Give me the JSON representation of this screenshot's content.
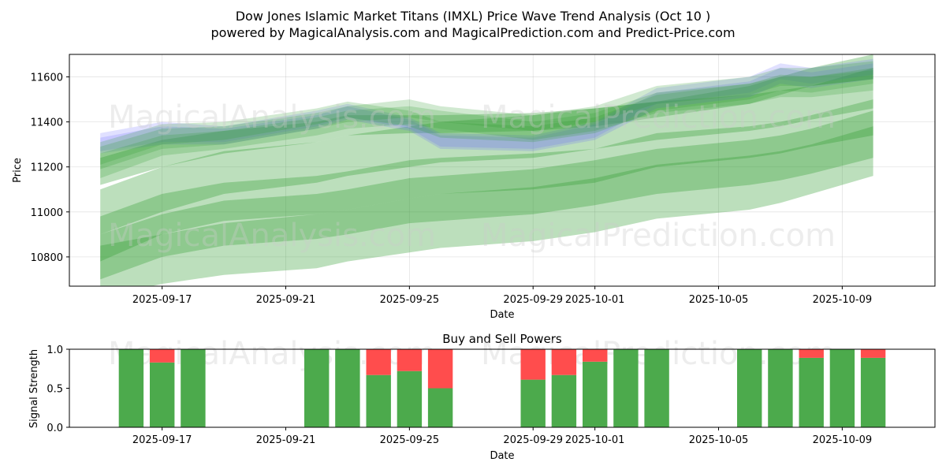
{
  "title_line1": "Dow Jones Islamic Market Titans (IMXL) Price Wave Trend Analysis (Oct 10 )",
  "title_line2": "powered by MagicalAnalysis.com and MagicalPrediction.com and Predict-Price.com",
  "watermarks": [
    "MagicalAnalysis.com",
    "MagicalPrediction.com"
  ],
  "colors": {
    "green_band": "#2e9a2e",
    "blue_band": "#6666ff",
    "buy": "#4caa4c",
    "sell": "#ff4d4d"
  },
  "chart_data": [
    {
      "type": "area",
      "title": "",
      "xlabel": "Date",
      "ylabel": "Price",
      "xlim": [
        "2025-09-14",
        "2025-10-12"
      ],
      "ylim": [
        10670,
        11700
      ],
      "xticks": [
        "2025-09-17",
        "2025-09-21",
        "2025-09-25",
        "2025-09-29",
        "2025-10-01",
        "2025-10-05",
        "2025-10-09"
      ],
      "yticks": [
        10800,
        11000,
        11200,
        11400,
        11600
      ],
      "grid": true,
      "x": [
        "2025-09-15",
        "2025-09-17",
        "2025-09-19",
        "2025-09-22",
        "2025-09-23",
        "2025-09-25",
        "2025-09-26",
        "2025-09-29",
        "2025-10-01",
        "2025-10-03",
        "2025-10-06",
        "2025-10-07",
        "2025-10-08",
        "2025-10-10"
      ],
      "recent_bands": [
        {
          "color": "blue",
          "upper": [
            11350,
            11400,
            11380,
            11450,
            11480,
            11420,
            11350,
            11340,
            11400,
            11550,
            11600,
            11660,
            11640,
            11680
          ],
          "lower": [
            11270,
            11310,
            11310,
            11380,
            11420,
            11370,
            11290,
            11280,
            11330,
            11480,
            11530,
            11590,
            11570,
            11610
          ]
        },
        {
          "color": "blue",
          "upper": [
            11330,
            11380,
            11370,
            11430,
            11470,
            11410,
            11340,
            11330,
            11390,
            11530,
            11580,
            11640,
            11620,
            11660
          ],
          "lower": [
            11260,
            11300,
            11300,
            11370,
            11410,
            11360,
            11280,
            11270,
            11320,
            11460,
            11510,
            11570,
            11550,
            11590
          ]
        },
        {
          "color": "green",
          "upper": [
            11310,
            11390,
            11400,
            11460,
            11490,
            11450,
            11400,
            11380,
            11420,
            11520,
            11570,
            11610,
            11600,
            11640
          ],
          "lower": [
            11210,
            11300,
            11320,
            11390,
            11420,
            11380,
            11330,
            11310,
            11350,
            11450,
            11500,
            11540,
            11530,
            11570
          ]
        },
        {
          "color": "green",
          "upper": [
            11290,
            11370,
            11380,
            11440,
            11470,
            11500,
            11470,
            11430,
            11470,
            11560,
            11600,
            11640,
            11640,
            11670
          ],
          "lower": [
            11190,
            11280,
            11300,
            11370,
            11400,
            11420,
            11400,
            11360,
            11400,
            11480,
            11520,
            11560,
            11560,
            11590
          ]
        },
        {
          "color": "green",
          "upper": [
            11260,
            11340,
            11360,
            11420,
            11450,
            11470,
            11450,
            11400,
            11440,
            11530,
            11570,
            11600,
            11600,
            11630
          ],
          "lower": [
            11150,
            11250,
            11280,
            11340,
            11370,
            11390,
            11370,
            11320,
            11360,
            11440,
            11480,
            11510,
            11510,
            11540
          ]
        }
      ],
      "wave_bands": [
        {
          "upper": [
            11240,
            11320,
            11360,
            11400,
            11430,
            11430,
            11430,
            11440,
            11460,
            11490,
            11560,
            11600,
            11640,
            11700
          ],
          "lower": [
            11120,
            11200,
            11260,
            11310,
            11340,
            11350,
            11350,
            11360,
            11380,
            11420,
            11480,
            11520,
            11560,
            11590
          ]
        },
        {
          "upper": [
            11100,
            11200,
            11270,
            11310,
            11340,
            11380,
            11400,
            11430,
            11460,
            11490,
            11520,
            11540,
            11560,
            11640
          ],
          "lower": [
            10900,
            11000,
            11080,
            11130,
            11160,
            11200,
            11220,
            11240,
            11280,
            11320,
            11360,
            11380,
            11410,
            11460
          ]
        },
        {
          "upper": [
            10980,
            11080,
            11130,
            11160,
            11180,
            11230,
            11240,
            11260,
            11280,
            11350,
            11380,
            11400,
            11430,
            11500
          ],
          "lower": [
            10780,
            10900,
            10960,
            10990,
            11010,
            11060,
            11080,
            11100,
            11130,
            11200,
            11240,
            11260,
            11290,
            11340
          ]
        },
        {
          "upper": [
            10900,
            10990,
            11050,
            11080,
            11100,
            11150,
            11160,
            11190,
            11230,
            11280,
            11320,
            11340,
            11370,
            11450
          ],
          "lower": [
            10700,
            10800,
            10850,
            10880,
            10900,
            10950,
            10960,
            10990,
            11030,
            11080,
            11120,
            11140,
            11170,
            11240
          ]
        },
        {
          "upper": [
            10850,
            10900,
            10950,
            10990,
            11010,
            11060,
            11080,
            11110,
            11150,
            11210,
            11250,
            11270,
            11300,
            11380
          ],
          "lower": [
            10620,
            10680,
            10720,
            10750,
            10780,
            10820,
            10840,
            10870,
            10910,
            10970,
            11010,
            11040,
            11080,
            11160
          ]
        }
      ]
    },
    {
      "type": "bar",
      "title": "Buy and Sell Powers",
      "xlabel": "Date",
      "ylabel": "Signal Strength",
      "ylim": [
        0,
        1.0
      ],
      "yticks": [
        "0.0",
        "0.5",
        "1.0"
      ],
      "xticks": [
        "2025-09-17",
        "2025-09-21",
        "2025-09-25",
        "2025-09-29",
        "2025-10-01",
        "2025-10-05",
        "2025-10-09"
      ],
      "x": [
        "2025-09-16",
        "2025-09-17",
        "2025-09-18",
        "2025-09-22",
        "2025-09-23",
        "2025-09-24",
        "2025-09-25",
        "2025-09-26",
        "2025-09-29",
        "2025-09-30",
        "2025-10-01",
        "2025-10-02",
        "2025-10-03",
        "2025-10-06",
        "2025-10-07",
        "2025-10-08",
        "2025-10-09",
        "2025-10-10"
      ],
      "series": [
        {
          "name": "buy",
          "values": [
            1.0,
            0.83,
            1.0,
            1.0,
            1.0,
            0.67,
            0.72,
            0.5,
            0.61,
            0.67,
            0.84,
            1.0,
            1.0,
            1.0,
            1.0,
            0.89,
            1.0,
            0.89
          ]
        },
        {
          "name": "sell",
          "values": [
            0.0,
            0.17,
            0.0,
            0.0,
            0.0,
            0.33,
            0.28,
            0.5,
            0.39,
            0.33,
            0.16,
            0.0,
            0.0,
            0.0,
            0.0,
            0.11,
            0.0,
            0.11
          ]
        }
      ]
    }
  ]
}
